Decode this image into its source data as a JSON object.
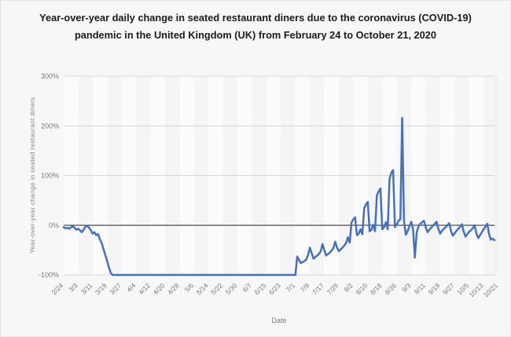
{
  "page": {
    "title": "Year-over-year daily change in seated restaurant diners due to the coronavirus (COVID-19) pandemic in the United Kingdom (UK) from February 24 to October 21, 2020"
  },
  "chart_data": {
    "type": "line",
    "title": "Year-over-year daily change in seated restaurant diners due to the coronavirus (COVID-19) pandemic in the United Kingdom (UK) from February 24 to October 21, 2020",
    "xlabel": "Date",
    "ylabel": "Year-over-year change in seated restaurant diners",
    "ylim": [
      -100,
      300
    ],
    "grid": true,
    "legend": "none",
    "y_tick_labels": [
      "300%",
      "200%",
      "100%",
      "0%",
      "-100%"
    ],
    "y_tick_values": [
      300,
      200,
      100,
      0,
      -100
    ],
    "x_tick_labels": [
      "2/24",
      "3/3",
      "3/11",
      "3/19",
      "3/27",
      "4/4",
      "4/12",
      "4/20",
      "4/28",
      "5/6",
      "5/14",
      "5/22",
      "5/30",
      "6/7",
      "6/15",
      "6/23",
      "7/1",
      "7/9",
      "7/17",
      "7/25",
      "8/2",
      "8/10",
      "8/18",
      "8/26",
      "9/3",
      "9/11",
      "9/19",
      "9/27",
      "10/5",
      "10/13",
      "10/21"
    ],
    "x_tick_interval_days": 8,
    "line_color": "#4470c2",
    "zero_line_color": "#4d4d4d",
    "series": [
      {
        "name": "Year-over-year change in seated restaurant diners (%)",
        "start_date": "2020-02-24",
        "end_date": "2020-10-21",
        "values": [
          -4,
          -6,
          -5,
          -7,
          -4,
          -2,
          -5,
          -9,
          -7,
          -10,
          -14,
          -9,
          -3,
          -1,
          -5,
          -10,
          -17,
          -14,
          -20,
          -18,
          -28,
          -36,
          -48,
          -60,
          -72,
          -85,
          -96,
          -100,
          -100,
          -100,
          -100,
          -100,
          -100,
          -100,
          -100,
          -100,
          -100,
          -100,
          -100,
          -100,
          -100,
          -100,
          -100,
          -100,
          -100,
          -100,
          -100,
          -100,
          -100,
          -100,
          -100,
          -100,
          -100,
          -100,
          -100,
          -100,
          -100,
          -100,
          -100,
          -100,
          -100,
          -100,
          -100,
          -100,
          -100,
          -100,
          -100,
          -100,
          -100,
          -100,
          -100,
          -100,
          -100,
          -100,
          -100,
          -100,
          -100,
          -100,
          -100,
          -100,
          -100,
          -100,
          -100,
          -100,
          -100,
          -100,
          -100,
          -100,
          -100,
          -100,
          -100,
          -100,
          -100,
          -100,
          -100,
          -100,
          -100,
          -100,
          -100,
          -100,
          -100,
          -100,
          -100,
          -100,
          -100,
          -100,
          -100,
          -100,
          -100,
          -100,
          -100,
          -100,
          -100,
          -100,
          -100,
          -100,
          -100,
          -100,
          -100,
          -100,
          -100,
          -100,
          -100,
          -100,
          -100,
          -100,
          -100,
          -100,
          -100,
          -63,
          -70,
          -76,
          -74,
          -72,
          -69,
          -60,
          -45,
          -56,
          -67,
          -64,
          -61,
          -58,
          -52,
          -38,
          -50,
          -61,
          -58,
          -55,
          -51,
          -46,
          -33,
          -45,
          -52,
          -49,
          -45,
          -41,
          -36,
          -24,
          -35,
          5,
          12,
          16,
          -20,
          -17,
          -8,
          -18,
          34,
          42,
          47,
          -12,
          -9,
          1,
          -12,
          60,
          68,
          74,
          -8,
          -4,
          6,
          -8,
          92,
          106,
          111,
          -4,
          2,
          9,
          12,
          216,
          8,
          -19,
          -12,
          -2,
          7,
          -8,
          -65,
          -15,
          -2,
          3,
          6,
          9,
          -4,
          -14,
          -9,
          -5,
          -1,
          3,
          7,
          -7,
          -17,
          -11,
          -7,
          -4,
          0,
          4,
          -12,
          -21,
          -16,
          -11,
          -7,
          -3,
          2,
          -13,
          -23,
          -18,
          -13,
          -10,
          -6,
          0,
          -16,
          -26,
          -20,
          -14,
          -8,
          -3,
          3,
          -18,
          -29,
          -27,
          -30
        ]
      }
    ]
  }
}
